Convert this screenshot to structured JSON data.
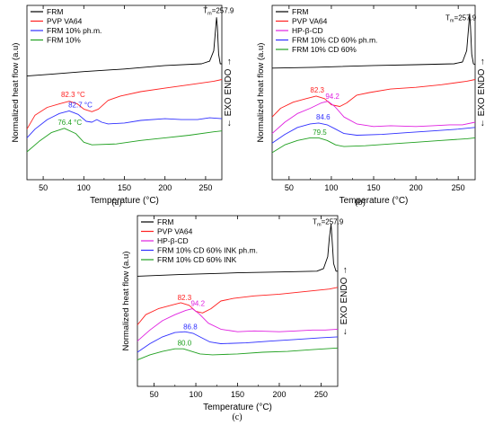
{
  "chart_data": [
    {
      "type": "line",
      "panel_label": "(a)",
      "xlabel": "Temperature (°C)",
      "ylabel": "Normalized heat flow (a.u)",
      "right_label": "← EXO  ENDO →",
      "xlim": [
        30,
        270
      ],
      "xticks": [
        50,
        100,
        150,
        200,
        250
      ],
      "legend_position": "top-left",
      "series": [
        {
          "name": "FRM",
          "color": "#000000",
          "points": [
            [
              30,
              0.595
            ],
            [
              60,
              0.605
            ],
            [
              100,
              0.62
            ],
            [
              150,
              0.635
            ],
            [
              200,
              0.655
            ],
            [
              245,
              0.665
            ],
            [
              255,
              0.68
            ],
            [
              260,
              0.74
            ],
            [
              262,
              0.85
            ],
            [
              263.5,
              0.93
            ],
            [
              264.5,
              0.88
            ],
            [
              266,
              0.72
            ],
            [
              268,
              0.665
            ],
            [
              270,
              0.665
            ]
          ]
        },
        {
          "name": "PVP VA64",
          "color": "#ff2020",
          "points": [
            [
              30,
              0.29
            ],
            [
              40,
              0.37
            ],
            [
              55,
              0.415
            ],
            [
              70,
              0.435
            ],
            [
              82,
              0.45
            ],
            [
              92,
              0.435
            ],
            [
              100,
              0.405
            ],
            [
              110,
              0.39
            ],
            [
              118,
              0.405
            ],
            [
              130,
              0.455
            ],
            [
              145,
              0.48
            ],
            [
              170,
              0.505
            ],
            [
              200,
              0.525
            ],
            [
              230,
              0.545
            ],
            [
              260,
              0.565
            ],
            [
              270,
              0.575
            ]
          ]
        },
        {
          "name": "FRM 10% ph.m.",
          "color": "#3030ff",
          "points": [
            [
              30,
              0.24
            ],
            [
              40,
              0.29
            ],
            [
              55,
              0.345
            ],
            [
              70,
              0.38
            ],
            [
              82,
              0.395
            ],
            [
              93,
              0.375
            ],
            [
              103,
              0.335
            ],
            [
              110,
              0.33
            ],
            [
              116,
              0.345
            ],
            [
              122,
              0.33
            ],
            [
              130,
              0.32
            ],
            [
              150,
              0.325
            ],
            [
              170,
              0.34
            ],
            [
              200,
              0.35
            ],
            [
              220,
              0.345
            ],
            [
              240,
              0.345
            ],
            [
              255,
              0.355
            ],
            [
              270,
              0.35
            ]
          ]
        },
        {
          "name": "FRM 10%",
          "color": "#20a020",
          "points": [
            [
              30,
              0.16
            ],
            [
              45,
              0.22
            ],
            [
              60,
              0.27
            ],
            [
              76,
              0.295
            ],
            [
              90,
              0.265
            ],
            [
              100,
              0.215
            ],
            [
              110,
              0.2
            ],
            [
              140,
              0.205
            ],
            [
              170,
              0.225
            ],
            [
              200,
              0.24
            ],
            [
              230,
              0.255
            ],
            [
              260,
              0.275
            ],
            [
              270,
              0.28
            ]
          ]
        }
      ],
      "annotations": [
        {
          "text": "T",
          "subscript": "m",
          "suffix": "=257.9",
          "color": "#000000",
          "x": 247,
          "y": 0.955
        },
        {
          "text": "82.3 °C",
          "color": "#ff2020",
          "x": 72,
          "y": 0.475
        },
        {
          "text": "82.7 °C",
          "color": "#3030ff",
          "x": 81,
          "y": 0.415
        },
        {
          "text": "76.4 °C",
          "color": "#20a020",
          "x": 68,
          "y": 0.315
        }
      ]
    },
    {
      "type": "line",
      "panel_label": "(b)",
      "xlabel": "Temperature (°C)",
      "ylabel": "Normalized heat flow (a.u)",
      "right_label": "← EXO  ENDO →",
      "xlim": [
        30,
        270
      ],
      "xticks": [
        50,
        100,
        150,
        200,
        250
      ],
      "legend_position": "top-left",
      "series": [
        {
          "name": "FRM",
          "color": "#000000",
          "points": [
            [
              30,
              0.64
            ],
            [
              80,
              0.645
            ],
            [
              150,
              0.655
            ],
            [
              200,
              0.66
            ],
            [
              245,
              0.665
            ],
            [
              255,
              0.675
            ],
            [
              260,
              0.74
            ],
            [
              262,
              0.86
            ],
            [
              263.5,
              0.95
            ],
            [
              264.5,
              0.88
            ],
            [
              266,
              0.72
            ],
            [
              268,
              0.665
            ],
            [
              270,
              0.66
            ]
          ]
        },
        {
          "name": "PVP VA64",
          "color": "#ff2020",
          "points": [
            [
              30,
              0.36
            ],
            [
              40,
              0.41
            ],
            [
              55,
              0.445
            ],
            [
              70,
              0.465
            ],
            [
              82,
              0.48
            ],
            [
              92,
              0.465
            ],
            [
              100,
              0.43
            ],
            [
              110,
              0.42
            ],
            [
              118,
              0.44
            ],
            [
              130,
              0.485
            ],
            [
              145,
              0.5
            ],
            [
              170,
              0.52
            ],
            [
              200,
              0.53
            ],
            [
              230,
              0.545
            ],
            [
              260,
              0.565
            ],
            [
              270,
              0.575
            ]
          ]
        },
        {
          "name": "HP-β-CD",
          "color": "#e020e0",
          "points": [
            [
              30,
              0.265
            ],
            [
              45,
              0.33
            ],
            [
              60,
              0.38
            ],
            [
              75,
              0.41
            ],
            [
              88,
              0.44
            ],
            [
              96,
              0.45
            ],
            [
              104,
              0.42
            ],
            [
              115,
              0.36
            ],
            [
              130,
              0.32
            ],
            [
              150,
              0.305
            ],
            [
              170,
              0.31
            ],
            [
              200,
              0.305
            ],
            [
              220,
              0.31
            ],
            [
              240,
              0.315
            ],
            [
              255,
              0.315
            ],
            [
              270,
              0.33
            ]
          ]
        },
        {
          "name": "FRM 10% CD 60% ph.m.",
          "color": "#3030ff",
          "points": [
            [
              30,
              0.21
            ],
            [
              45,
              0.26
            ],
            [
              60,
              0.3
            ],
            [
              75,
              0.32
            ],
            [
              85,
              0.325
            ],
            [
              95,
              0.315
            ],
            [
              105,
              0.29
            ],
            [
              115,
              0.265
            ],
            [
              130,
              0.255
            ],
            [
              160,
              0.26
            ],
            [
              190,
              0.27
            ],
            [
              220,
              0.28
            ],
            [
              250,
              0.29
            ],
            [
              270,
              0.3
            ]
          ]
        },
        {
          "name": "FRM 10% CD 60%",
          "color": "#20a020",
          "points": [
            [
              30,
              0.155
            ],
            [
              45,
              0.2
            ],
            [
              60,
              0.225
            ],
            [
              75,
              0.24
            ],
            [
              85,
              0.24
            ],
            [
              95,
              0.225
            ],
            [
              105,
              0.2
            ],
            [
              115,
              0.19
            ],
            [
              140,
              0.195
            ],
            [
              170,
              0.205
            ],
            [
              200,
              0.215
            ],
            [
              230,
              0.225
            ],
            [
              260,
              0.235
            ],
            [
              270,
              0.24
            ]
          ]
        }
      ],
      "annotations": [
        {
          "text": "T",
          "subscript": "m",
          "suffix": "=257.9",
          "color": "#000000",
          "x": 235,
          "y": 0.915
        },
        {
          "text": "82.3",
          "color": "#ff2020",
          "x": 75,
          "y": 0.5
        },
        {
          "text": "94.2",
          "color": "#e020e0",
          "x": 93,
          "y": 0.465
        },
        {
          "text": "84.6",
          "color": "#3030ff",
          "x": 82,
          "y": 0.345
        },
        {
          "text": "79.5",
          "color": "#20a020",
          "x": 78,
          "y": 0.258
        }
      ]
    },
    {
      "type": "line",
      "panel_label": "(c)",
      "xlabel": "Temperature (°C)",
      "ylabel": "Normalized heat flow (a.u)",
      "right_label": "← EXO  ENDO →",
      "xlim": [
        30,
        270
      ],
      "xticks": [
        50,
        100,
        150,
        200,
        250
      ],
      "legend_position": "top-left",
      "series": [
        {
          "name": "FRM",
          "color": "#000000",
          "points": [
            [
              30,
              0.645
            ],
            [
              80,
              0.655
            ],
            [
              150,
              0.665
            ],
            [
              200,
              0.67
            ],
            [
              245,
              0.675
            ],
            [
              253,
              0.69
            ],
            [
              258,
              0.76
            ],
            [
              260,
              0.87
            ],
            [
              262,
              0.95
            ],
            [
              263,
              0.88
            ],
            [
              265,
              0.72
            ],
            [
              268,
              0.675
            ],
            [
              270,
              0.675
            ]
          ]
        },
        {
          "name": "PVP VA64",
          "color": "#ff2020",
          "points": [
            [
              30,
              0.36
            ],
            [
              40,
              0.42
            ],
            [
              55,
              0.455
            ],
            [
              70,
              0.475
            ],
            [
              82,
              0.49
            ],
            [
              92,
              0.475
            ],
            [
              100,
              0.44
            ],
            [
              108,
              0.43
            ],
            [
              118,
              0.455
            ],
            [
              130,
              0.5
            ],
            [
              145,
              0.515
            ],
            [
              170,
              0.53
            ],
            [
              200,
              0.54
            ],
            [
              230,
              0.555
            ],
            [
              260,
              0.57
            ],
            [
              270,
              0.58
            ]
          ]
        },
        {
          "name": "HP-β-CD",
          "color": "#e020e0",
          "points": [
            [
              30,
              0.265
            ],
            [
              45,
              0.33
            ],
            [
              60,
              0.385
            ],
            [
              75,
              0.42
            ],
            [
              88,
              0.445
            ],
            [
              96,
              0.455
            ],
            [
              104,
              0.425
            ],
            [
              115,
              0.37
            ],
            [
              130,
              0.335
            ],
            [
              150,
              0.32
            ],
            [
              170,
              0.325
            ],
            [
              200,
              0.32
            ],
            [
              220,
              0.325
            ],
            [
              240,
              0.33
            ],
            [
              255,
              0.33
            ],
            [
              270,
              0.335
            ]
          ]
        },
        {
          "name": "FRM 10% CD 60% INK  ph.m.",
          "color": "#3030ff",
          "points": [
            [
              30,
              0.2
            ],
            [
              45,
              0.25
            ],
            [
              60,
              0.29
            ],
            [
              75,
              0.315
            ],
            [
              87,
              0.32
            ],
            [
              97,
              0.31
            ],
            [
              107,
              0.285
            ],
            [
              117,
              0.26
            ],
            [
              130,
              0.25
            ],
            [
              160,
              0.255
            ],
            [
              190,
              0.265
            ],
            [
              220,
              0.275
            ],
            [
              250,
              0.285
            ],
            [
              270,
              0.29
            ]
          ]
        },
        {
          "name": "FRM 10% CD 60% INK",
          "color": "#20a020",
          "points": [
            [
              30,
              0.155
            ],
            [
              45,
              0.185
            ],
            [
              60,
              0.205
            ],
            [
              75,
              0.22
            ],
            [
              85,
              0.22
            ],
            [
              95,
              0.205
            ],
            [
              105,
              0.19
            ],
            [
              120,
              0.185
            ],
            [
              150,
              0.19
            ],
            [
              180,
              0.2
            ],
            [
              210,
              0.205
            ],
            [
              240,
              0.215
            ],
            [
              270,
              0.225
            ]
          ]
        }
      ],
      "annotations": [
        {
          "text": "T",
          "subscript": "m",
          "suffix": "=257.9",
          "color": "#000000",
          "x": 240,
          "y": 0.95
        },
        {
          "text": "82.3",
          "color": "#ff2020",
          "x": 78,
          "y": 0.505
        },
        {
          "text": "94.2",
          "color": "#e020e0",
          "x": 94,
          "y": 0.47
        },
        {
          "text": "86.8",
          "color": "#3030ff",
          "x": 85,
          "y": 0.335
        },
        {
          "text": "80.0",
          "color": "#20a020",
          "x": 78,
          "y": 0.24
        }
      ]
    }
  ]
}
